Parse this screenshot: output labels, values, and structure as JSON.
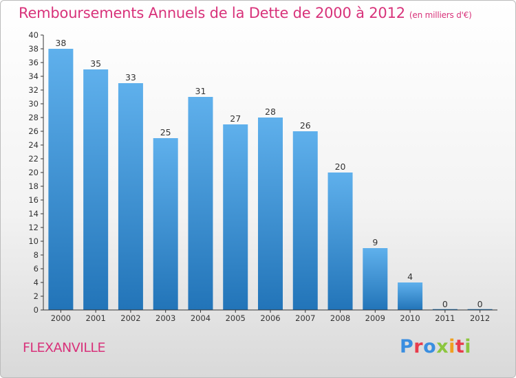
{
  "header": {
    "title": "Remboursements Annuels de la Dette de 2000 à 2012",
    "subtitle": "(en milliers d'€)"
  },
  "footer": {
    "commune": "FLEXANVILLE",
    "logo_text": "Proxiti",
    "logo_colors": [
      "#3a8ee0",
      "#e83c4c",
      "#3a8ee0",
      "#8cc63f",
      "#f0a020",
      "#e83c4c",
      "#8cc63f"
    ]
  },
  "colors": {
    "title": "#d8327a",
    "bar_top": "#5fb0ec",
    "bar_bottom": "#2274b8",
    "axis": "#333333",
    "grid": "#cccccc"
  },
  "chart_data": {
    "type": "bar",
    "categories": [
      "2000",
      "2001",
      "2002",
      "2003",
      "2004",
      "2005",
      "2006",
      "2007",
      "2008",
      "2009",
      "2010",
      "2011",
      "2012"
    ],
    "values": [
      38,
      35,
      33,
      25,
      31,
      27,
      28,
      26,
      20,
      9,
      4,
      0,
      0
    ],
    "ylim": [
      0,
      40
    ],
    "yticks": [
      0,
      2,
      4,
      6,
      8,
      10,
      12,
      14,
      16,
      18,
      20,
      22,
      24,
      26,
      28,
      30,
      32,
      34,
      36,
      38,
      40
    ],
    "grid": false,
    "data_labels": true
  }
}
